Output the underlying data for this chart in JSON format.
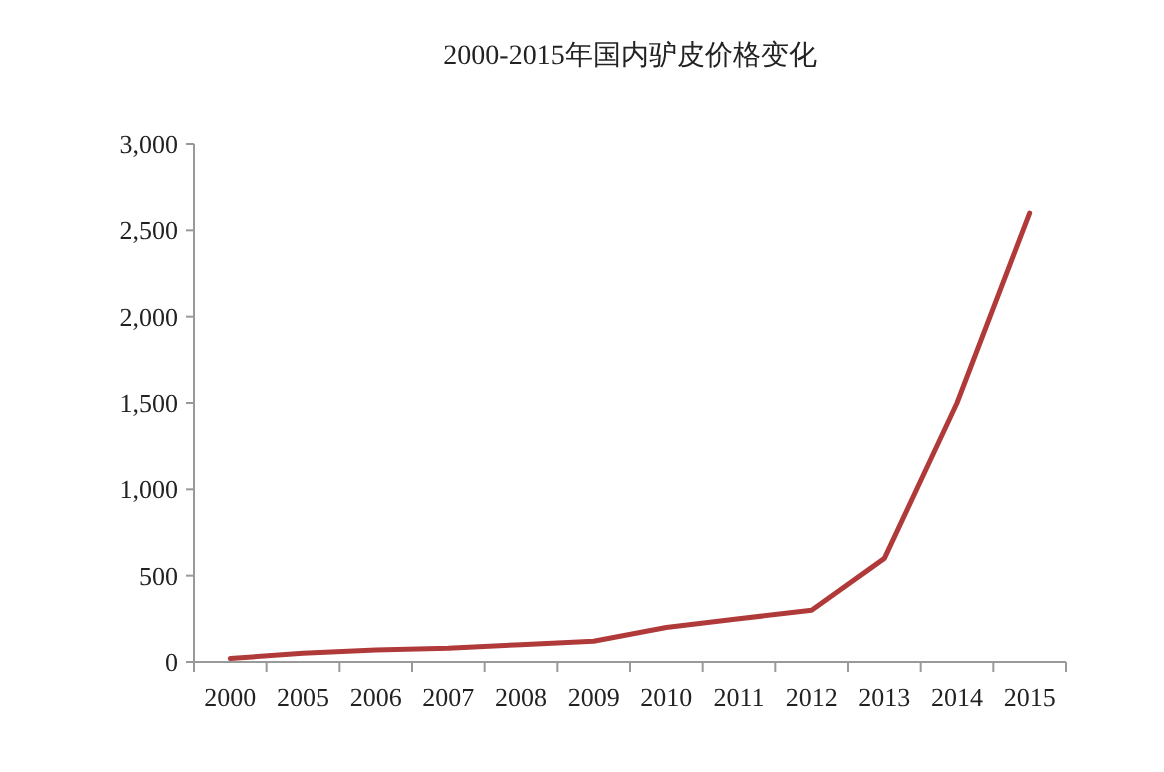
{
  "chart_data": {
    "type": "line",
    "title": "2000-2015年国内驴皮价格变化",
    "categories": [
      "2000",
      "2005",
      "2006",
      "2007",
      "2008",
      "2009",
      "2010",
      "2011",
      "2012",
      "2013",
      "2014",
      "2015"
    ],
    "series": [
      {
        "color": "#b03a3a",
        "values": [
          20,
          50,
          70,
          80,
          100,
          120,
          200,
          250,
          300,
          600,
          1500,
          2600
        ]
      }
    ],
    "ylim": [
      0,
      3000
    ],
    "yticks": [
      {
        "value": 0,
        "label": "0"
      },
      {
        "value": 500,
        "label": "500"
      },
      {
        "value": 1000,
        "label": "1,000"
      },
      {
        "value": 1500,
        "label": "1,500"
      },
      {
        "value": 2000,
        "label": "2,000"
      },
      {
        "value": 2500,
        "label": "2,500"
      },
      {
        "value": 3000,
        "label": "3,000"
      }
    ],
    "grid": false,
    "marker": "none",
    "line_style": "solid"
  }
}
